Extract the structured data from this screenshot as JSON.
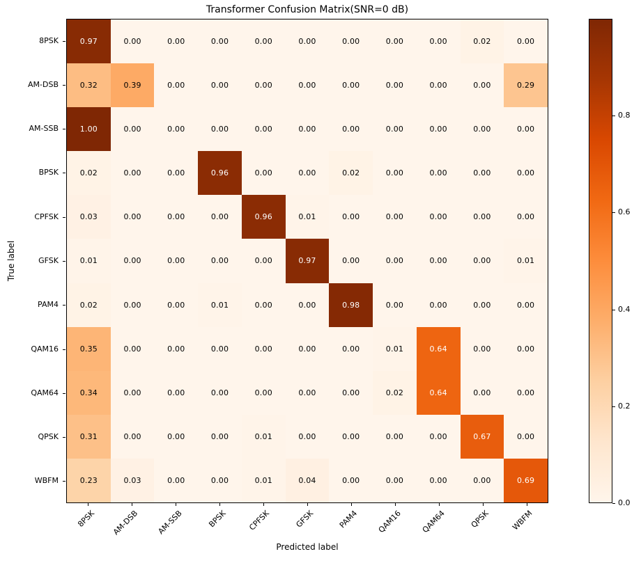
{
  "chart_data": {
    "type": "heatmap",
    "title": "Transformer Confusion Matrix(SNR=0 dB)",
    "xlabel": "Predicted label",
    "ylabel": "True label",
    "categories": [
      "8PSK",
      "AM-DSB",
      "AM-SSB",
      "BPSK",
      "CPFSK",
      "GFSK",
      "PAM4",
      "QAM16",
      "QAM64",
      "QPSK",
      "WBFM"
    ],
    "matrix": [
      [
        0.97,
        0.0,
        0.0,
        0.0,
        0.0,
        0.0,
        0.0,
        0.0,
        0.0,
        0.02,
        0.0
      ],
      [
        0.32,
        0.39,
        0.0,
        0.0,
        0.0,
        0.0,
        0.0,
        0.0,
        0.0,
        0.0,
        0.29
      ],
      [
        1.0,
        0.0,
        0.0,
        0.0,
        0.0,
        0.0,
        0.0,
        0.0,
        0.0,
        0.0,
        0.0
      ],
      [
        0.02,
        0.0,
        0.0,
        0.96,
        0.0,
        0.0,
        0.02,
        0.0,
        0.0,
        0.0,
        0.0
      ],
      [
        0.03,
        0.0,
        0.0,
        0.0,
        0.96,
        0.01,
        0.0,
        0.0,
        0.0,
        0.0,
        0.0
      ],
      [
        0.01,
        0.0,
        0.0,
        0.0,
        0.0,
        0.97,
        0.0,
        0.0,
        0.0,
        0.0,
        0.01
      ],
      [
        0.02,
        0.0,
        0.0,
        0.01,
        0.0,
        0.0,
        0.98,
        0.0,
        0.0,
        0.0,
        0.0
      ],
      [
        0.35,
        0.0,
        0.0,
        0.0,
        0.0,
        0.0,
        0.0,
        0.01,
        0.64,
        0.0,
        0.0
      ],
      [
        0.34,
        0.0,
        0.0,
        0.0,
        0.0,
        0.0,
        0.0,
        0.02,
        0.64,
        0.0,
        0.0
      ],
      [
        0.31,
        0.0,
        0.0,
        0.0,
        0.01,
        0.0,
        0.0,
        0.0,
        0.0,
        0.67,
        0.0
      ],
      [
        0.23,
        0.03,
        0.0,
        0.0,
        0.01,
        0.04,
        0.0,
        0.0,
        0.0,
        0.0,
        0.69
      ]
    ],
    "value_format_decimals": 2,
    "vmin": 0,
    "vmax": 1,
    "colormap": "Oranges",
    "colormap_stops": [
      "#fff5eb",
      "#fee6ce",
      "#fdd0a2",
      "#fdae6b",
      "#fd8d3c",
      "#f16913",
      "#d94801",
      "#a63603",
      "#7f2704"
    ],
    "text_color_dark": "#000000",
    "text_color_light": "#ffffff",
    "text_switch_threshold": 0.5,
    "xtick_rotation_deg": 45,
    "grid": false,
    "colorbar": {
      "position": "right",
      "tick_values": [
        0.0,
        0.2,
        0.4,
        0.6,
        0.8
      ],
      "tick_labels": [
        "0.0",
        "0.2",
        "0.4",
        "0.6",
        "0.8"
      ]
    }
  }
}
